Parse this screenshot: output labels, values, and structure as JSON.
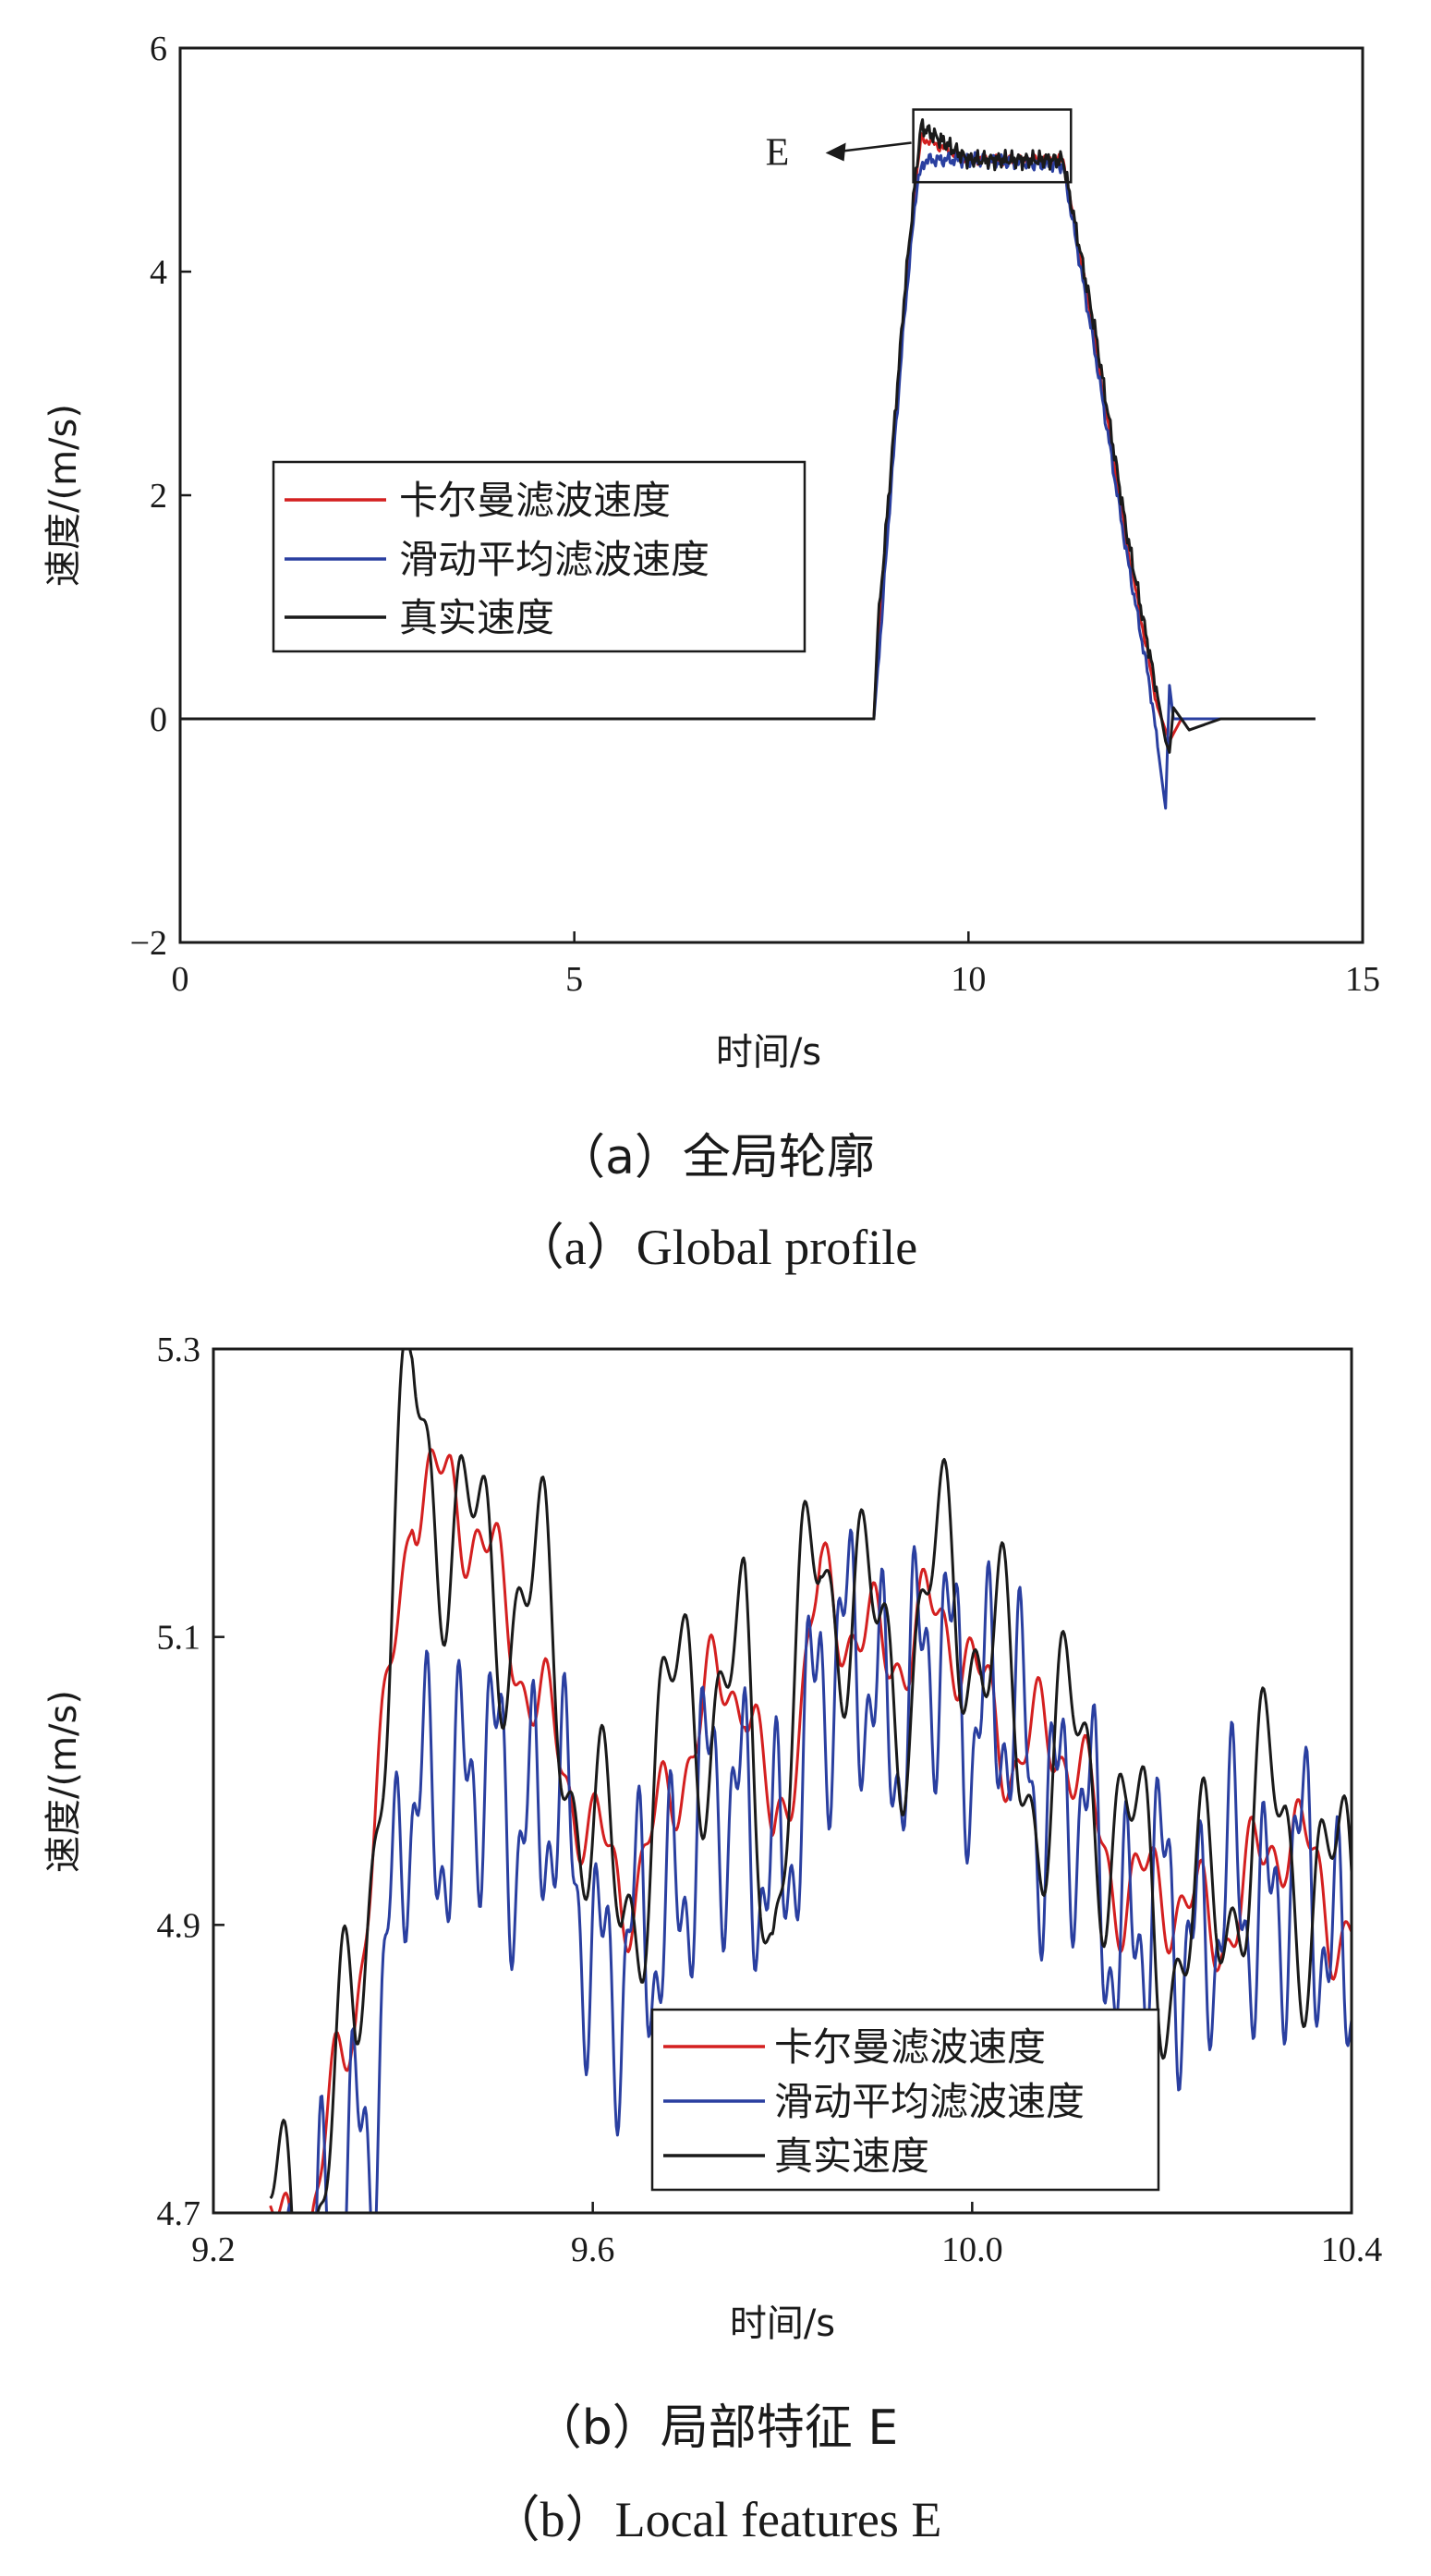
{
  "colors": {
    "kalman": "#d42020",
    "moving_avg": "#2a3fa0",
    "true": "#1a1a1a",
    "axis": "#1a1a1a"
  },
  "chart_data": [
    {
      "type": "line",
      "id": "a",
      "caption_cn": "（a）全局轮廓",
      "caption_en": "（a）Global profile",
      "xlabel": "时间/s",
      "ylabel": "速度/(m/s)",
      "xlim": [
        0,
        15
      ],
      "ylim": [
        -2,
        6
      ],
      "xticks": [
        0,
        5,
        10,
        15
      ],
      "xtick_labels": [
        "0",
        "5",
        "10",
        "15"
      ],
      "yticks": [
        -2,
        0,
        2,
        4,
        6
      ],
      "ytick_labels": [
        "−2",
        "0",
        "2",
        "4",
        "6"
      ],
      "annotation": {
        "label": "E",
        "box_x": [
          9.3,
          11.3
        ],
        "box_y": [
          4.8,
          5.45
        ]
      },
      "legend": [
        "卡尔曼滤波速度",
        "滑动平均滤波速度",
        "真实速度"
      ],
      "series": [
        {
          "name": "卡尔曼滤波速度",
          "points": [
            [
              0,
              0
            ],
            [
              8.7,
              0
            ],
            [
              8.8,
              0
            ],
            [
              8.85,
              0.7
            ],
            [
              9.0,
              2.0
            ],
            [
              9.2,
              3.8
            ],
            [
              9.35,
              4.9
            ],
            [
              9.4,
              5.2
            ],
            [
              10.0,
              5.0
            ],
            [
              11.2,
              5.0
            ],
            [
              11.6,
              3.4
            ],
            [
              12.0,
              1.6
            ],
            [
              12.4,
              0.1
            ],
            [
              12.55,
              -0.2
            ],
            [
              12.7,
              0.0
            ],
            [
              14.4,
              0
            ]
          ]
        },
        {
          "name": "滑动平均滤波速度",
          "points": [
            [
              0,
              0
            ],
            [
              8.7,
              0
            ],
            [
              8.8,
              0
            ],
            [
              8.9,
              0.9
            ],
            [
              9.0,
              1.9
            ],
            [
              9.2,
              3.7
            ],
            [
              9.35,
              4.8
            ],
            [
              9.45,
              5.0
            ],
            [
              10.0,
              5.0
            ],
            [
              11.2,
              4.95
            ],
            [
              11.6,
              3.3
            ],
            [
              12.0,
              1.5
            ],
            [
              12.3,
              0.3
            ],
            [
              12.5,
              -0.8
            ],
            [
              12.55,
              0.3
            ],
            [
              12.6,
              0.0
            ],
            [
              14.4,
              0
            ]
          ]
        },
        {
          "name": "真实速度",
          "points": [
            [
              0,
              0
            ],
            [
              8.7,
              0
            ],
            [
              8.8,
              0
            ],
            [
              8.85,
              0.8
            ],
            [
              9.0,
              2.1
            ],
            [
              9.2,
              3.9
            ],
            [
              9.35,
              5.0
            ],
            [
              9.4,
              5.3
            ],
            [
              10.0,
              5.0
            ],
            [
              11.2,
              5.0
            ],
            [
              11.6,
              3.5
            ],
            [
              12.0,
              1.7
            ],
            [
              12.4,
              0.2
            ],
            [
              12.5,
              -0.2
            ],
            [
              12.55,
              -0.3
            ],
            [
              12.6,
              0.1
            ],
            [
              12.8,
              -0.1
            ],
            [
              13.2,
              0
            ],
            [
              14.4,
              0
            ]
          ]
        }
      ]
    },
    {
      "type": "line",
      "id": "b",
      "caption_cn": "（b）局部特征 E",
      "caption_en": "（b）Local features E",
      "xlabel": "时间/s",
      "ylabel": "速度/(m/s)",
      "xlim": [
        9.2,
        10.4
      ],
      "ylim": [
        4.7,
        5.3
      ],
      "xticks": [
        9.2,
        9.6,
        10.0,
        10.4
      ],
      "xtick_labels": [
        "9.2",
        "9.6",
        "10.0",
        "10.4"
      ],
      "yticks": [
        4.7,
        4.9,
        5.1,
        5.3
      ],
      "ytick_labels": [
        "4.7",
        "4.9",
        "5.1",
        "5.3"
      ],
      "legend": [
        "卡尔曼滤波速度",
        "滑动平均滤波速度",
        "真实速度"
      ],
      "series": [
        {
          "name": "卡尔曼滤波速度",
          "trend": [
            [
              9.26,
              4.68
            ],
            [
              9.3,
              4.7
            ],
            [
              9.35,
              4.84
            ],
            [
              9.38,
              5.02
            ],
            [
              9.41,
              5.22
            ],
            [
              9.45,
              5.2
            ],
            [
              9.5,
              5.13
            ],
            [
              9.55,
              5.05
            ],
            [
              9.6,
              4.95
            ],
            [
              9.63,
              4.92
            ],
            [
              9.7,
              5.02
            ],
            [
              9.76,
              5.08
            ],
            [
              9.79,
              4.96
            ],
            [
              9.84,
              5.12
            ],
            [
              9.9,
              5.1
            ],
            [
              9.98,
              5.1
            ],
            [
              10.05,
              5.02
            ],
            [
              10.1,
              5.02
            ],
            [
              10.16,
              4.93
            ],
            [
              10.25,
              4.9
            ],
            [
              10.33,
              4.96
            ],
            [
              10.4,
              4.9
            ]
          ],
          "noise": 0.03,
          "freq": 110
        },
        {
          "name": "滑动平均滤波速度",
          "trend": [
            [
              9.26,
              4.62
            ],
            [
              9.33,
              4.68
            ],
            [
              9.37,
              4.8
            ],
            [
              9.4,
              4.96
            ],
            [
              9.45,
              5.0
            ],
            [
              9.55,
              4.98
            ],
            [
              9.6,
              4.9
            ],
            [
              9.63,
              4.85
            ],
            [
              9.7,
              4.95
            ],
            [
              9.76,
              5.0
            ],
            [
              9.8,
              4.9
            ],
            [
              9.84,
              5.1
            ],
            [
              9.9,
              5.05
            ],
            [
              9.98,
              5.08
            ],
            [
              10.05,
              5.02
            ],
            [
              10.1,
              4.98
            ],
            [
              10.16,
              4.9
            ],
            [
              10.25,
              4.9
            ],
            [
              10.33,
              4.93
            ],
            [
              10.4,
              4.88
            ]
          ],
          "noise": 0.07,
          "freq": 170
        },
        {
          "name": "真实速度",
          "trend": [
            [
              9.26,
              4.66
            ],
            [
              9.3,
              4.7
            ],
            [
              9.35,
              4.85
            ],
            [
              9.38,
              5.05
            ],
            [
              9.41,
              5.24
            ],
            [
              9.45,
              5.2
            ],
            [
              9.5,
              5.15
            ],
            [
              9.55,
              5.08
            ],
            [
              9.6,
              4.97
            ],
            [
              9.63,
              4.93
            ],
            [
              9.7,
              5.04
            ],
            [
              9.76,
              5.08
            ],
            [
              9.79,
              4.94
            ],
            [
              9.84,
              5.14
            ],
            [
              9.9,
              5.1
            ],
            [
              9.98,
              5.12
            ],
            [
              10.05,
              5.04
            ],
            [
              10.1,
              5.02
            ],
            [
              10.16,
              4.94
            ],
            [
              10.25,
              4.9
            ],
            [
              10.33,
              4.97
            ],
            [
              10.4,
              4.92
            ]
          ],
          "noise": 0.07,
          "freq": 90
        }
      ]
    }
  ]
}
